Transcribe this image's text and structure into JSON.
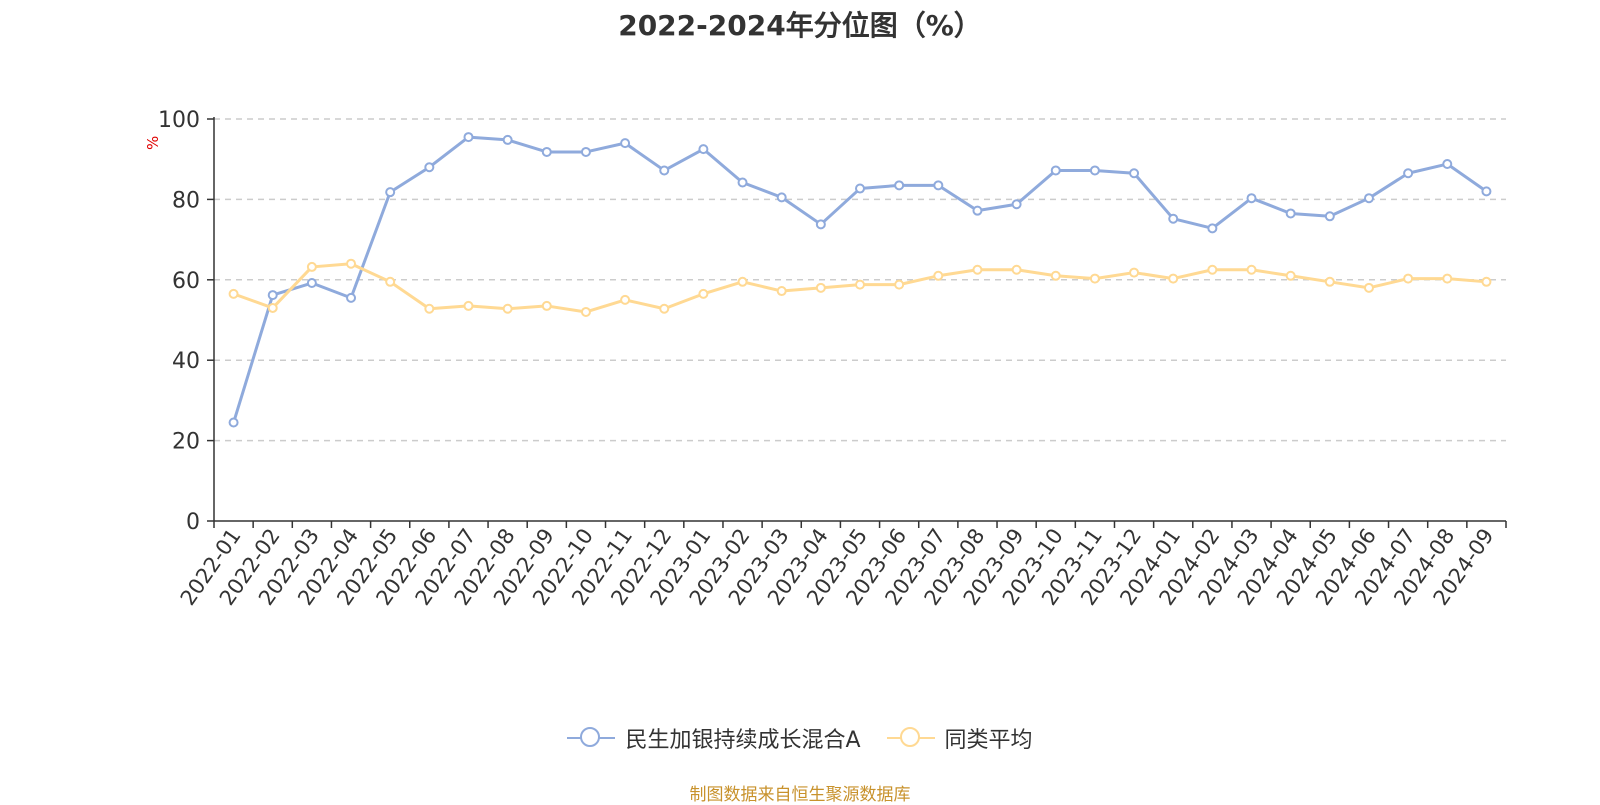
{
  "title": "2022-2024年分位图（%）",
  "unit_label": "%",
  "source": "制图数据来自恒生聚源数据库",
  "colors": {
    "series1": "#8faadc",
    "series2": "#ffd993",
    "grid": "#cccccc",
    "axis": "#333333",
    "unit": "#e00000"
  },
  "legend": {
    "items": [
      {
        "label": "民生加银持续成长混合A"
      },
      {
        "label": "同类平均"
      }
    ]
  },
  "chart_data": {
    "type": "line",
    "title": "2022-2024年分位图（%）",
    "ylabel": "%",
    "ylim": [
      0,
      100
    ],
    "yticks": [
      "0",
      "20",
      "40",
      "60",
      "80",
      "100"
    ],
    "grid": true,
    "legend_position": "bottom",
    "x": [
      "2022-01",
      "2022-02",
      "2022-03",
      "2022-04",
      "2022-05",
      "2022-06",
      "2022-07",
      "2022-08",
      "2022-09",
      "2022-10",
      "2022-11",
      "2022-12",
      "2023-01",
      "2023-02",
      "2023-03",
      "2023-04",
      "2023-05",
      "2023-06",
      "2023-07",
      "2023-08",
      "2023-09",
      "2023-10",
      "2023-11",
      "2023-12",
      "2024-01",
      "2024-02",
      "2024-03",
      "2024-04",
      "2024-05",
      "2024-06",
      "2024-07",
      "2024-08",
      "2024-09"
    ],
    "series": [
      {
        "name": "民生加银持续成长混合A",
        "values": [
          24.5,
          56.2,
          59.2,
          55.5,
          81.8,
          88,
          95.5,
          94.8,
          91.8,
          91.8,
          94,
          87.2,
          92.5,
          84.2,
          80.5,
          73.8,
          82.7,
          83.5,
          83.5,
          77.2,
          78.8,
          87.2,
          87.2,
          86.5,
          75.2,
          72.8,
          80.3,
          76.5,
          75.8,
          80.3,
          86.5,
          88.8,
          82
        ]
      },
      {
        "name": "同类平均",
        "values": [
          56.5,
          53,
          63.2,
          64,
          59.5,
          52.8,
          53.5,
          52.8,
          53.5,
          52,
          55,
          52.8,
          56.5,
          59.5,
          57.2,
          58,
          58.8,
          58.8,
          61,
          62.5,
          62.5,
          61,
          60.3,
          61.8,
          60.3,
          62.5,
          62.5,
          61,
          59.5,
          58,
          60.3,
          60.3,
          59.5
        ]
      }
    ]
  }
}
